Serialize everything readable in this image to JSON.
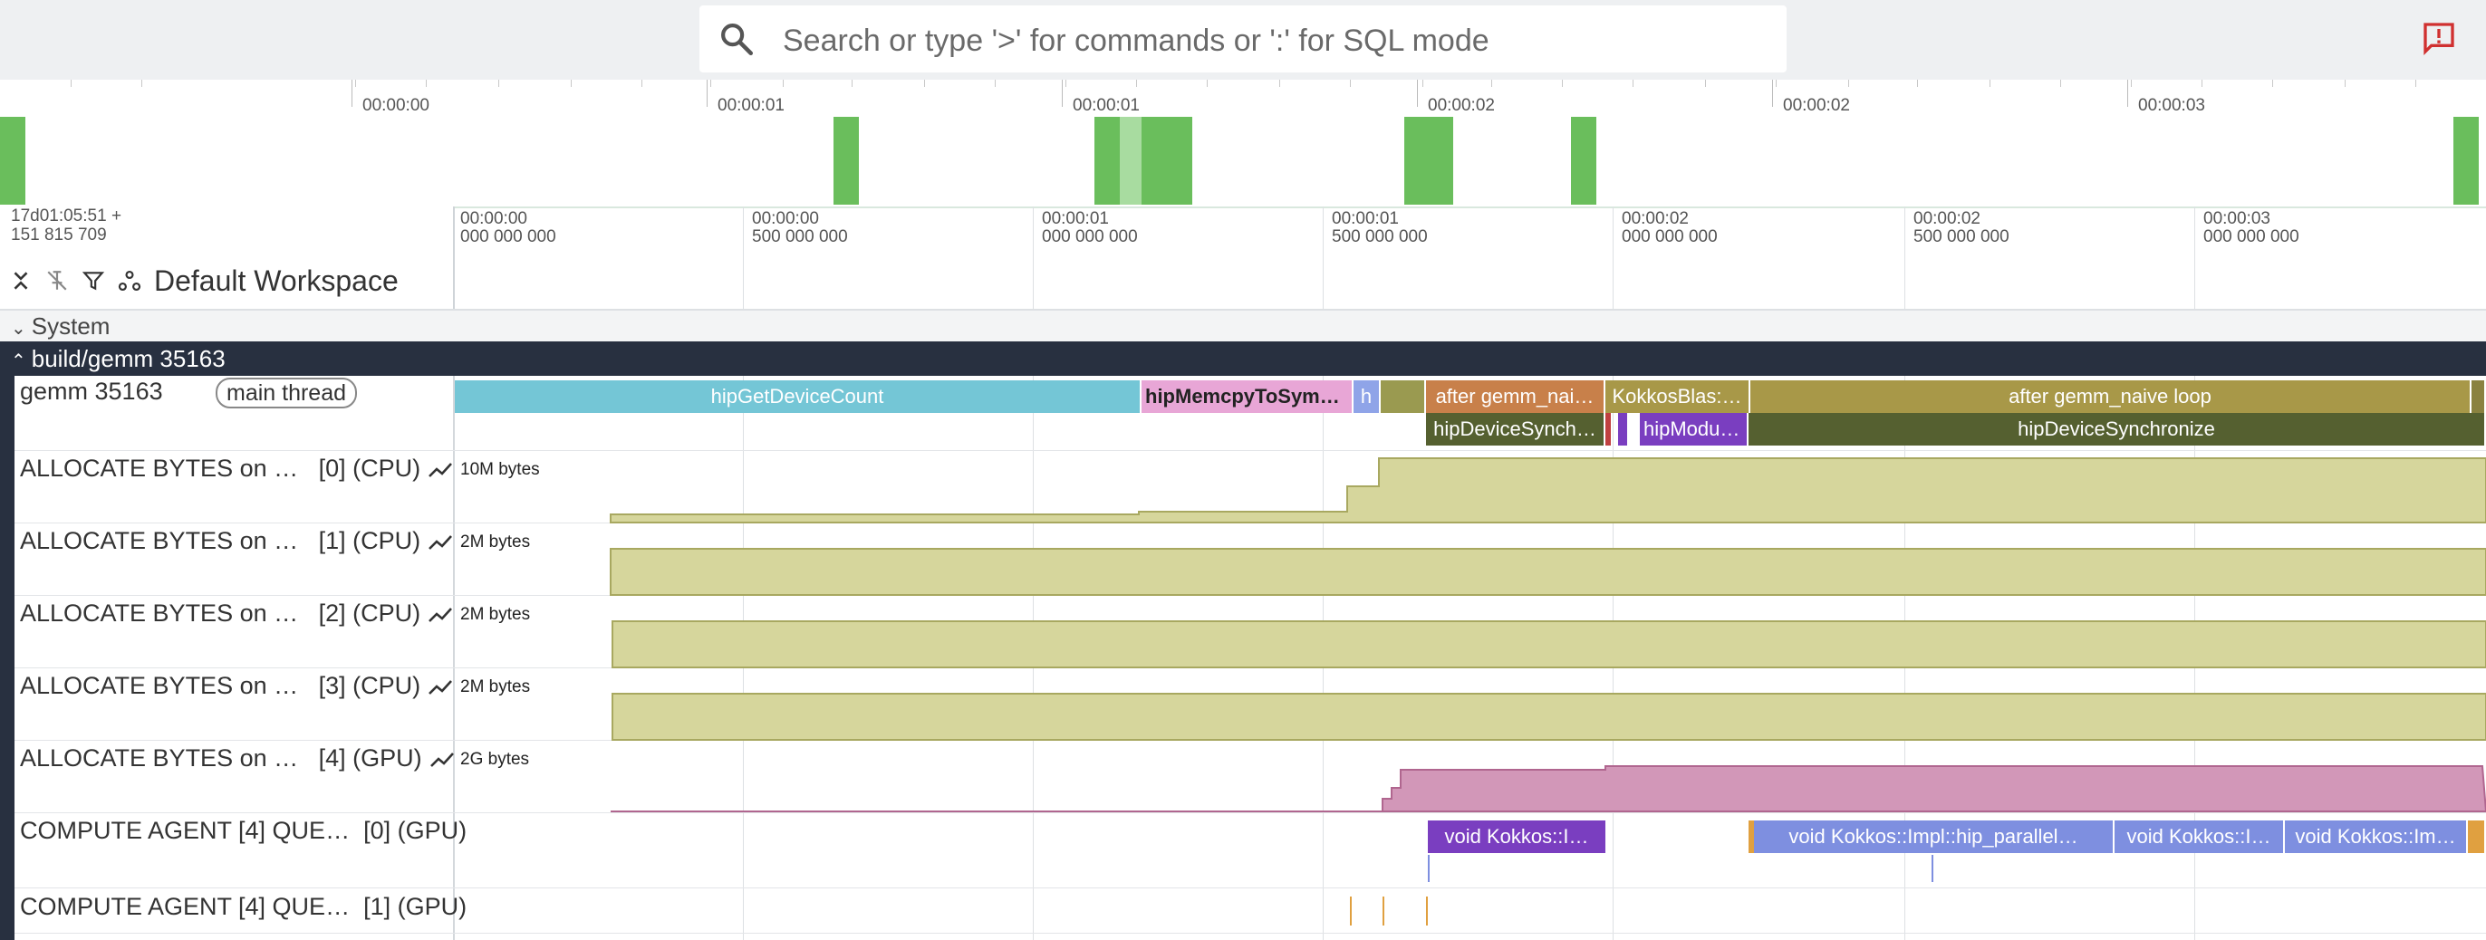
{
  "search": {
    "placeholder": "Search or type '>' for commands or ':' for SQL mode"
  },
  "icons": {
    "search": "search-icon",
    "feedback": "feedback-icon",
    "collapse": "collapse-all-icon",
    "unpin": "unpin-icon",
    "filter": "filter-icon",
    "workspace": "workspace-icon",
    "counter": "trend-line-icon"
  },
  "overview": {
    "labels": [
      "00:00:00",
      "00:00:01",
      "00:00:01",
      "00:00:02",
      "00:00:02",
      "00:00:03"
    ]
  },
  "ruler": {
    "timestamp": [
      "17d01:05:51 +",
      "151 815 709"
    ],
    "labels": [
      [
        "00:00:00",
        "000 000 000"
      ],
      [
        "00:00:00",
        "500 000 000"
      ],
      [
        "00:00:01",
        "000 000 000"
      ],
      [
        "00:00:01",
        "500 000 000"
      ],
      [
        "00:00:02",
        "000 000 000"
      ],
      [
        "00:00:02",
        "500 000 000"
      ],
      [
        "00:00:03",
        "000 000 000"
      ]
    ]
  },
  "workspace": {
    "name": "Default Workspace"
  },
  "groups": {
    "system": "System",
    "process": "build/gemm 35163"
  },
  "thread": {
    "name": "gemm 35163",
    "badge": "main thread",
    "slices_row1": [
      "hipGetDeviceCount",
      "hipMemcpyToSymbol",
      "h",
      "after gemm_nai…",
      "KokkosBlas:…",
      "after gemm_naive loop"
    ],
    "slices_row2": [
      "hipDeviceSynch…",
      "hipModul…",
      "hipDeviceSynchronize"
    ]
  },
  "tracks": [
    {
      "name": "ALLOCATE BYTES on …",
      "suffix": "[0] (CPU)",
      "scale": "10M bytes"
    },
    {
      "name": "ALLOCATE BYTES on …",
      "suffix": "[1] (CPU)",
      "scale": "2M bytes"
    },
    {
      "name": "ALLOCATE BYTES on …",
      "suffix": "[2] (CPU)",
      "scale": "2M bytes"
    },
    {
      "name": "ALLOCATE BYTES on …",
      "suffix": "[3] (CPU)",
      "scale": "2M bytes"
    },
    {
      "name": "ALLOCATE BYTES on …",
      "suffix": "[4] (GPU)",
      "scale": "2G bytes"
    }
  ],
  "gpu_queues": [
    {
      "name": "COMPUTE AGENT [4] QUE…",
      "suffix": "[0] (GPU)",
      "slices": [
        "void Kokkos::I…",
        "void Kokkos::Impl::hip_parallel…",
        "void Kokkos::I…",
        "void Kokkos::Im…"
      ]
    },
    {
      "name": "COMPUTE AGENT [4] QUE…",
      "suffix": "[1] (GPU)"
    }
  ],
  "colors": {
    "topbar": "#eef0f2",
    "overview_block": "#6abe5c",
    "process_header": "#283040",
    "counter_fill": "#d6d69c",
    "counter_stroke": "#a8a860",
    "gpu_counter_fill": "#d297b8",
    "gpu_counter_stroke": "#b0668f",
    "slice_blue": "#74c6d6",
    "slice_pink": "#e8a6d6",
    "slice_lavender": "#8fa4e8",
    "slice_orange": "#c8804a",
    "slice_olive": "#a89848",
    "slice_dark_olive": "#556030",
    "slice_purple": "#7a3ec0",
    "slice_kernel": "#7e8fe0"
  }
}
